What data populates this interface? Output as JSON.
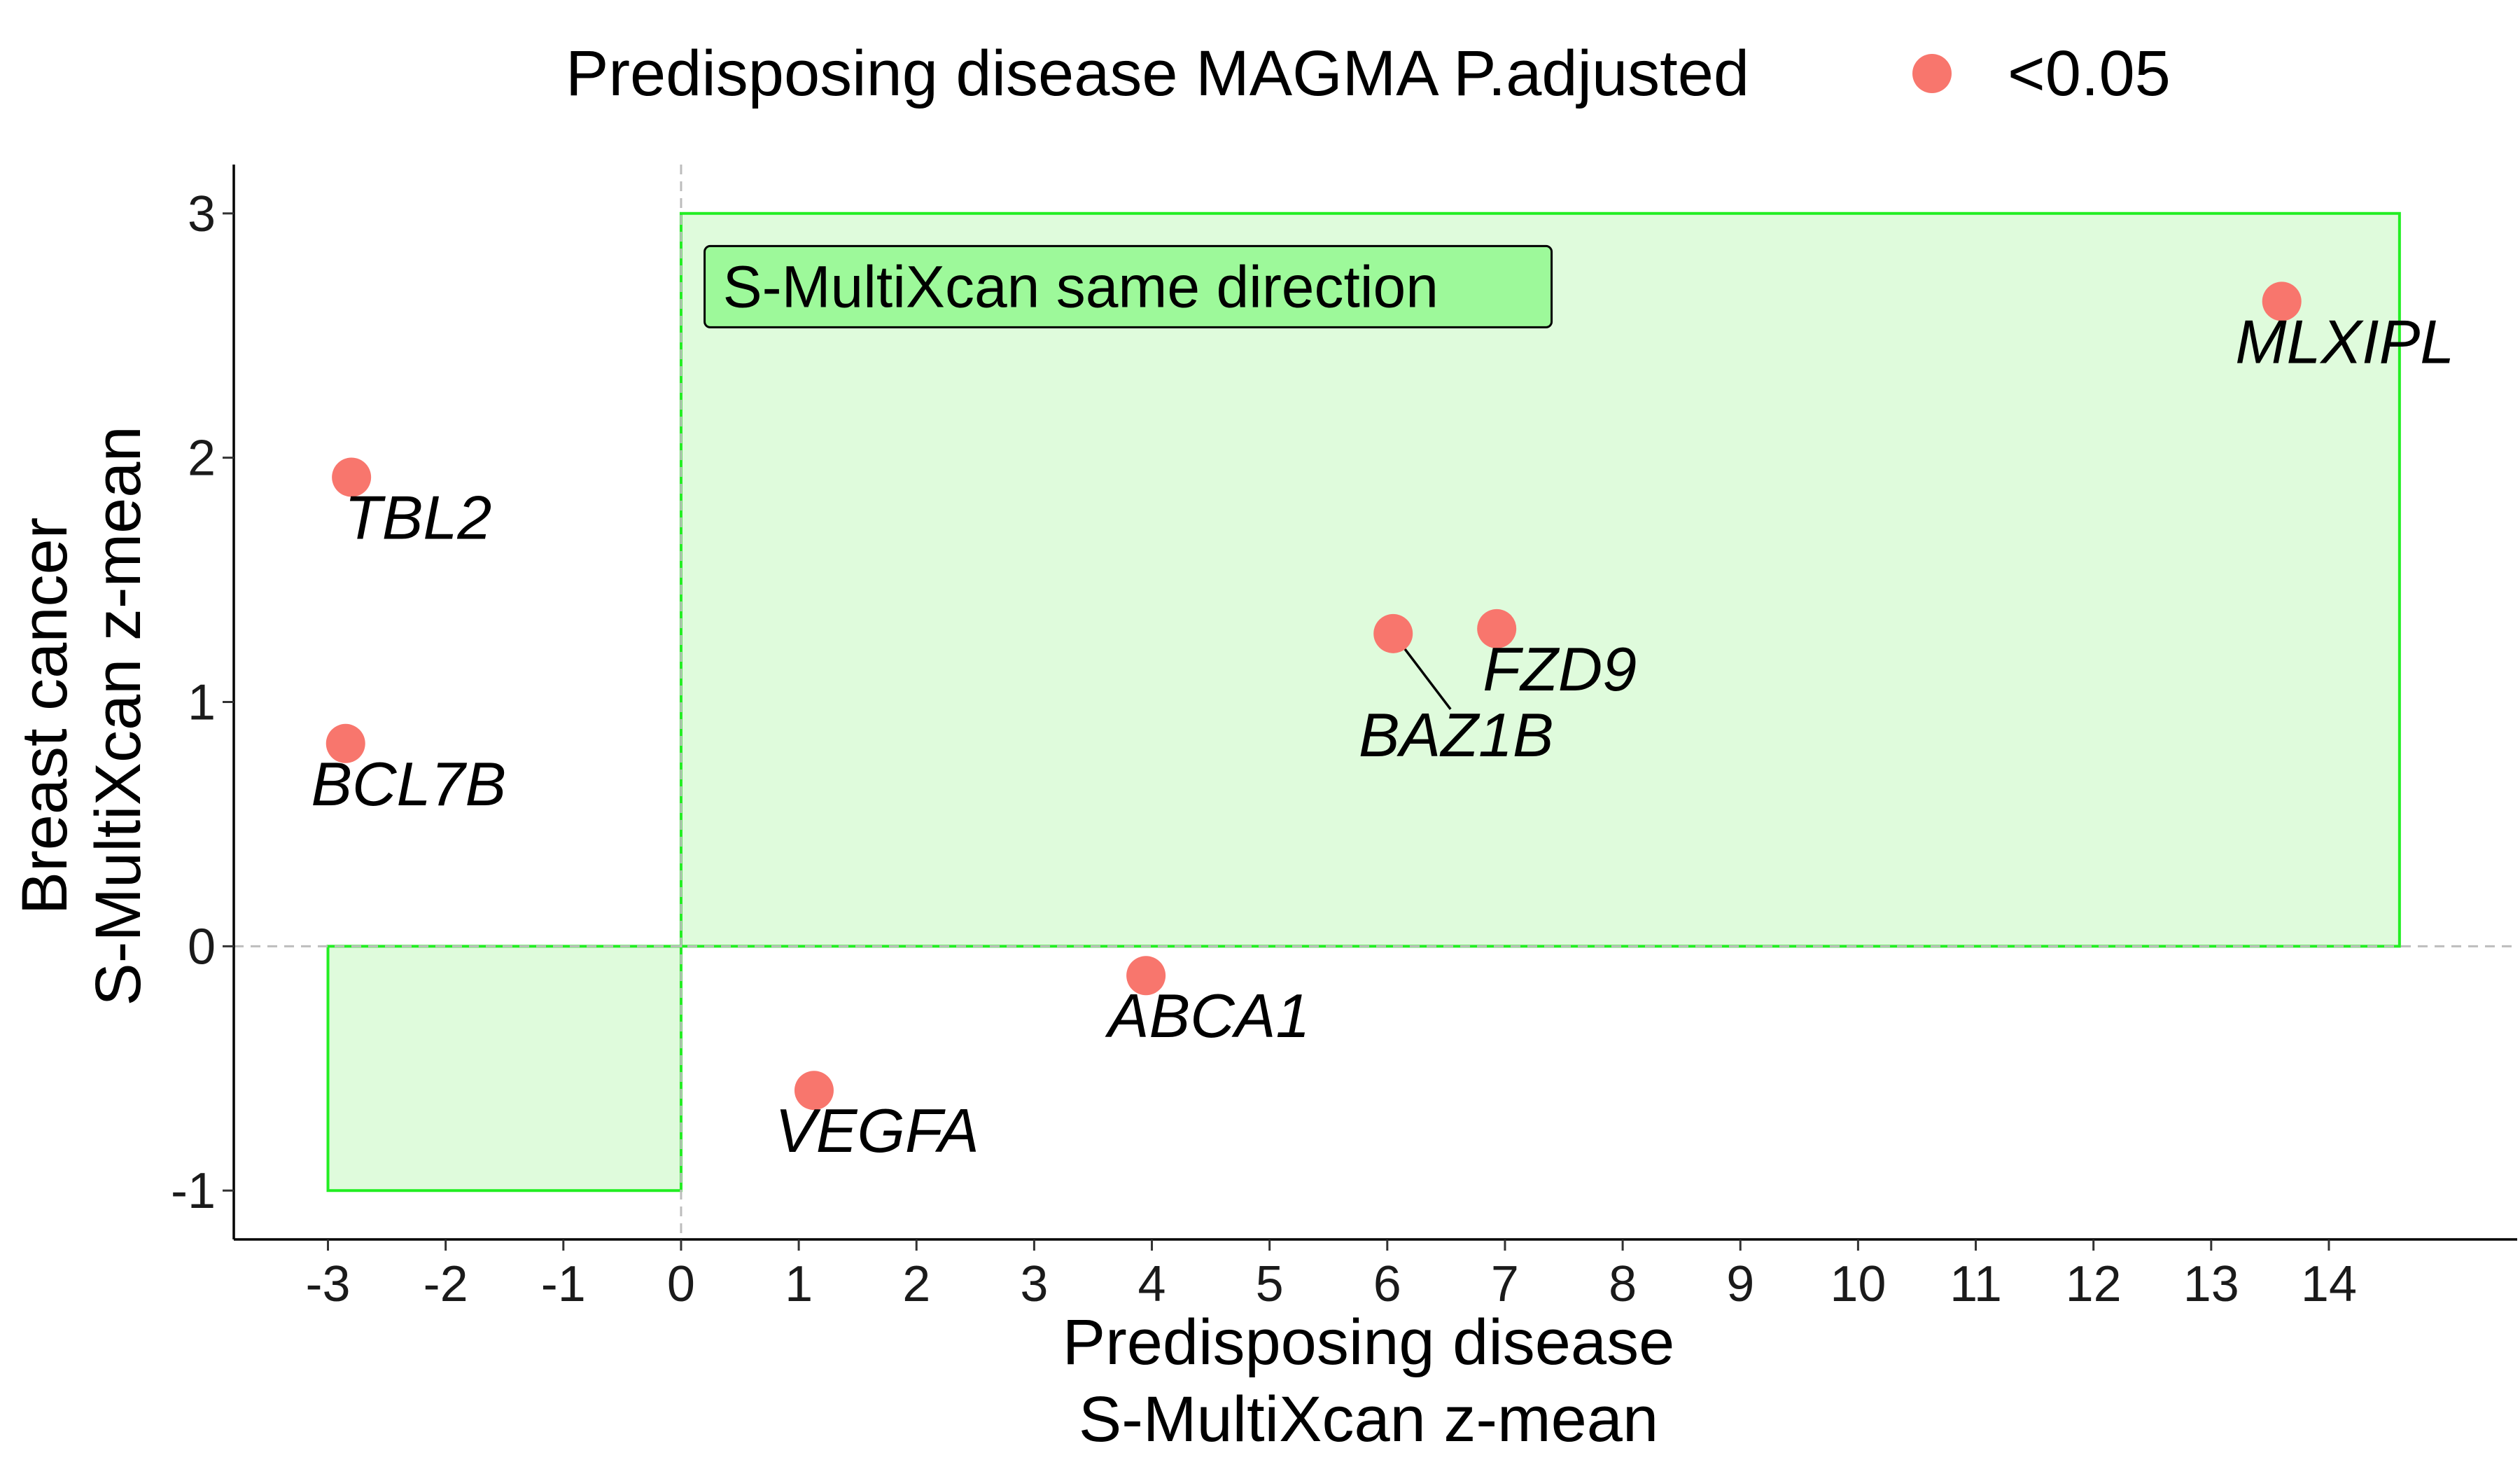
{
  "chart_data": {
    "type": "scatter",
    "xlabel": [
      "Predisposing disease",
      "S-MultiXcan z-mean"
    ],
    "ylabel": [
      "Breast cancer",
      "S-MultiXcan z-mean"
    ],
    "xlim": [
      -3.8,
      15.6
    ],
    "ylim": [
      -1.2,
      3.2
    ],
    "x_ticks": [
      -3,
      -2,
      -1,
      0,
      1,
      2,
      3,
      4,
      5,
      6,
      7,
      8,
      9,
      10,
      11,
      12,
      13,
      14
    ],
    "y_ticks": [
      -1,
      0,
      1,
      2,
      3
    ],
    "grid": false,
    "reference_lines": [
      {
        "axis": "x",
        "value": 0,
        "style": "dashed",
        "color": "#bdbdbd"
      },
      {
        "axis": "y",
        "value": 0,
        "style": "dashed",
        "color": "#bdbdbd"
      }
    ],
    "regions": [
      {
        "x": [
          0,
          14.6
        ],
        "y": [
          0,
          3
        ],
        "fill": "#dffbdc",
        "stroke": "#22ee22"
      },
      {
        "x": [
          -3,
          0
        ],
        "y": [
          -1,
          0
        ],
        "fill": "#dffbdc",
        "stroke": "#22ee22"
      }
    ],
    "annotation": {
      "text": "S-MultiXcan same direction",
      "fill": "#9df99a",
      "x": 0.2,
      "y": 2.7
    },
    "legend": {
      "title": "Predisposing disease MAGMA P.adjusted",
      "entries": [
        {
          "label": "<0.05",
          "color": "#f8766d"
        }
      ],
      "placement": "top"
    },
    "series": [
      {
        "color": "#f8766d",
        "points": [
          {
            "label": "MLXIPL",
            "x": 13.6,
            "y": 2.64
          },
          {
            "label": "TBL2",
            "x": -2.8,
            "y": 1.92
          },
          {
            "label": "BCL7B",
            "x": -2.85,
            "y": 0.83
          },
          {
            "label": "BAZ1B",
            "x": 6.05,
            "y": 1.28,
            "leader": true
          },
          {
            "label": "FZD9",
            "x": 6.93,
            "y": 1.3
          },
          {
            "label": "ABCA1",
            "x": 3.95,
            "y": -0.12
          },
          {
            "label": "VEGFA",
            "x": 1.13,
            "y": -0.59
          }
        ]
      }
    ]
  }
}
